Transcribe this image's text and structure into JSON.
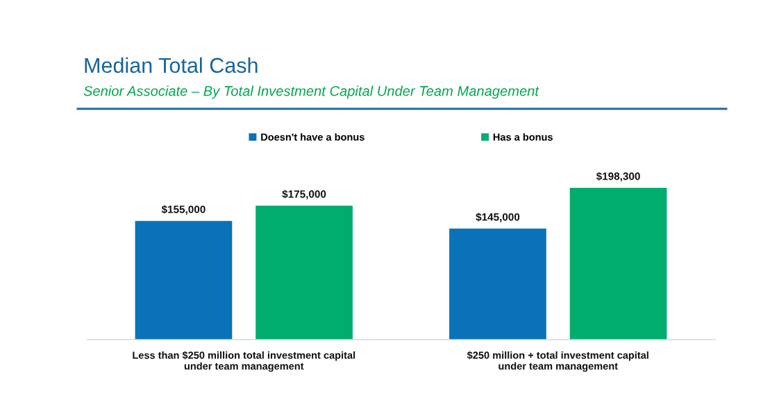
{
  "chart_data": {
    "type": "bar",
    "title": "Median Total Cash",
    "subtitle": "Senior Associate – By Total Investment Capital Under Team Management",
    "categories": [
      "Less than $250 million total investment capital\nunder team management",
      "$250 million + total investment capital\nunder team management"
    ],
    "series": [
      {
        "name": "Doesn't have a bonus",
        "color": "#0a72b8",
        "values": [
          155000,
          145000
        ],
        "value_labels": [
          "$155,000",
          "$145,000"
        ]
      },
      {
        "name": "Has a bonus",
        "color": "#00ad6f",
        "values": [
          175000,
          198300
        ],
        "value_labels": [
          "$175,000",
          "$198,300"
        ]
      }
    ],
    "legend": "top",
    "tick_labels": "x"
  }
}
